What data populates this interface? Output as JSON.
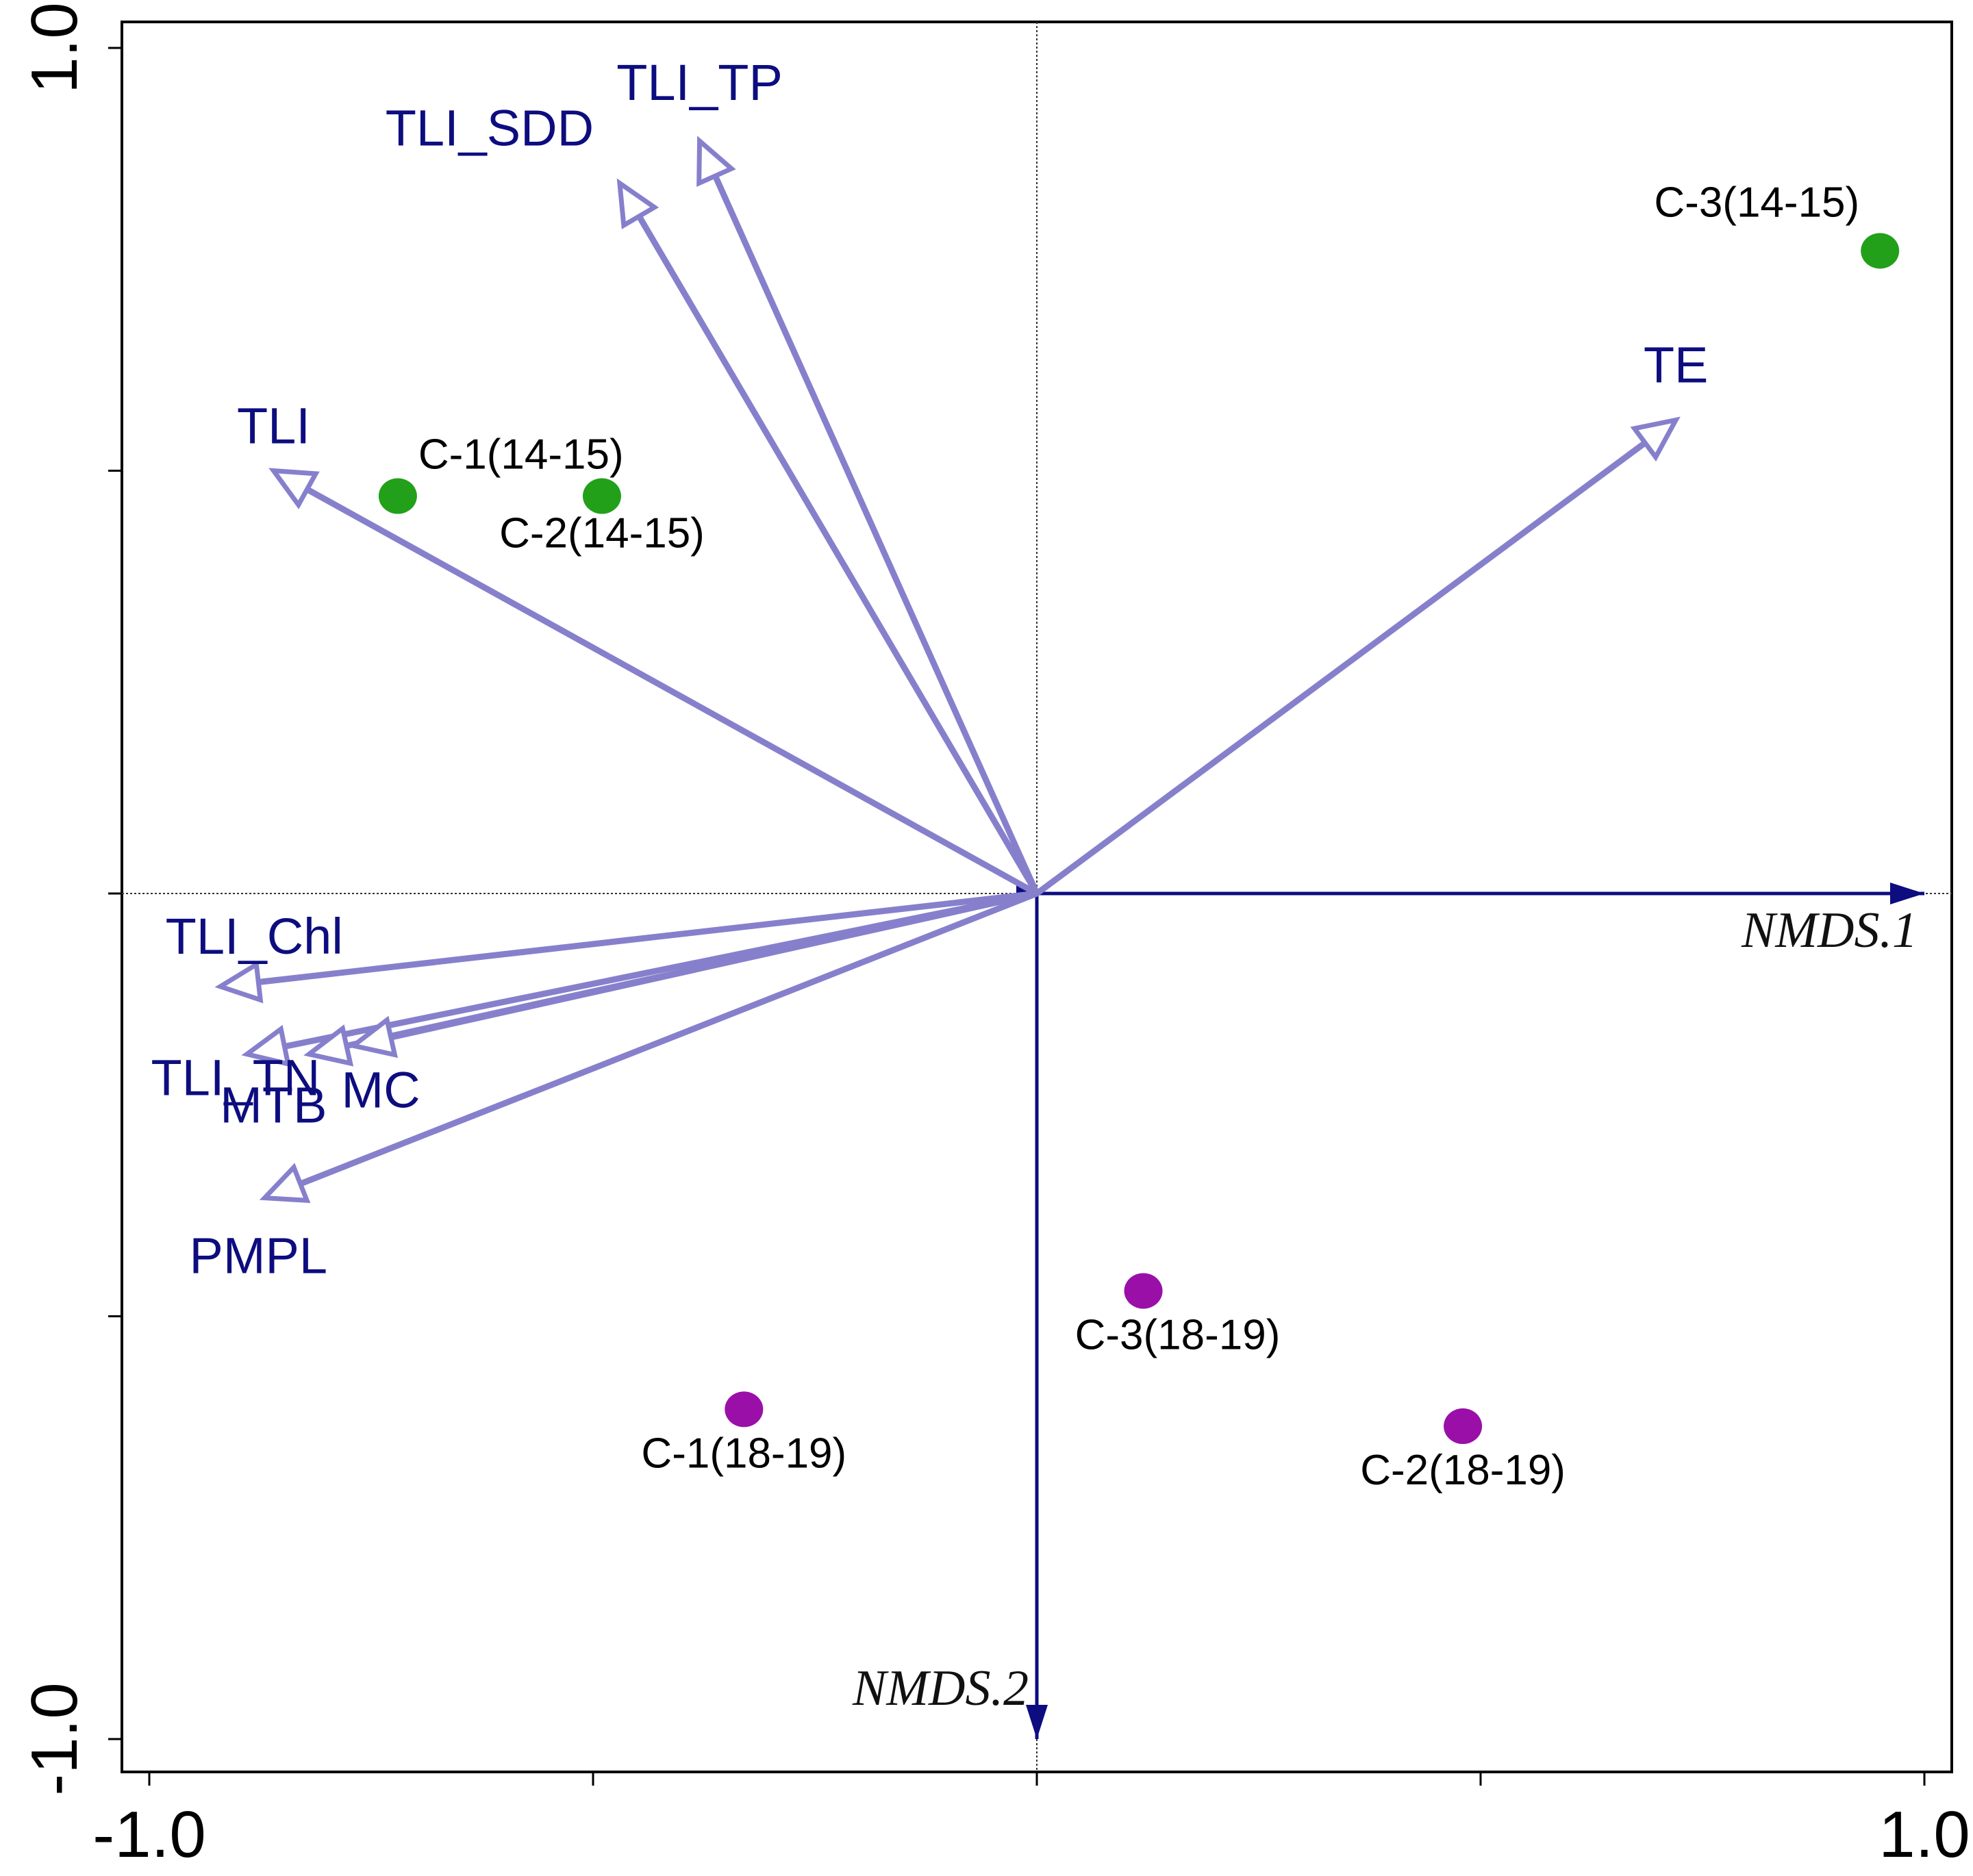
{
  "chart_data": {
    "type": "scatter",
    "subtype": "NMDS ordination biplot",
    "xlim": [
      -1.0,
      1.0
    ],
    "ylim": [
      -1.0,
      1.0
    ],
    "x_tick_labels": [
      "-1.0",
      "1.0"
    ],
    "y_tick_labels": [
      "-1.0",
      "1.0"
    ],
    "axes_arrows": [
      {
        "name": "NMDS.1",
        "x": 1.0,
        "y": 0.0
      },
      {
        "name": "NMDS.2",
        "x": 0.0,
        "y": -1.0
      }
    ],
    "env_vectors": [
      {
        "name": "TLI_TP",
        "x": -0.38,
        "y": 0.89
      },
      {
        "name": "TLI_SDD",
        "x": -0.47,
        "y": 0.84
      },
      {
        "name": "TLI",
        "x": -0.86,
        "y": 0.5
      },
      {
        "name": "TE",
        "x": 0.72,
        "y": 0.56
      },
      {
        "name": "TLI_Chl",
        "x": -0.92,
        "y": -0.11
      },
      {
        "name": "TLI_TN",
        "x": -0.89,
        "y": -0.19
      },
      {
        "name": "MTB",
        "x": -0.82,
        "y": -0.19
      },
      {
        "name": "MC",
        "x": -0.77,
        "y": -0.18
      },
      {
        "name": "PMPL",
        "x": -0.87,
        "y": -0.36
      }
    ],
    "sites": [
      {
        "name": "C-1(14-15)",
        "group": "2014-15",
        "x": -0.72,
        "y": 0.47
      },
      {
        "name": "C-2(14-15)",
        "group": "2014-15",
        "x": -0.49,
        "y": 0.47
      },
      {
        "name": "C-3(14-15)",
        "group": "2014-15",
        "x": 0.95,
        "y": 0.76
      },
      {
        "name": "C-1(18-19)",
        "group": "2018-19",
        "x": -0.33,
        "y": -0.61
      },
      {
        "name": "C-2(18-19)",
        "group": "2018-19",
        "x": 0.48,
        "y": -0.63
      },
      {
        "name": "C-3(18-19)",
        "group": "2018-19",
        "x": 0.12,
        "y": -0.47
      }
    ],
    "colors": {
      "env_arrow": "#8680cc",
      "env_label": "#0d0d80",
      "axis_arrow": "#0d0d80",
      "site_2014_15": "#22a01a",
      "site_2018_19": "#9a0fa8"
    }
  }
}
